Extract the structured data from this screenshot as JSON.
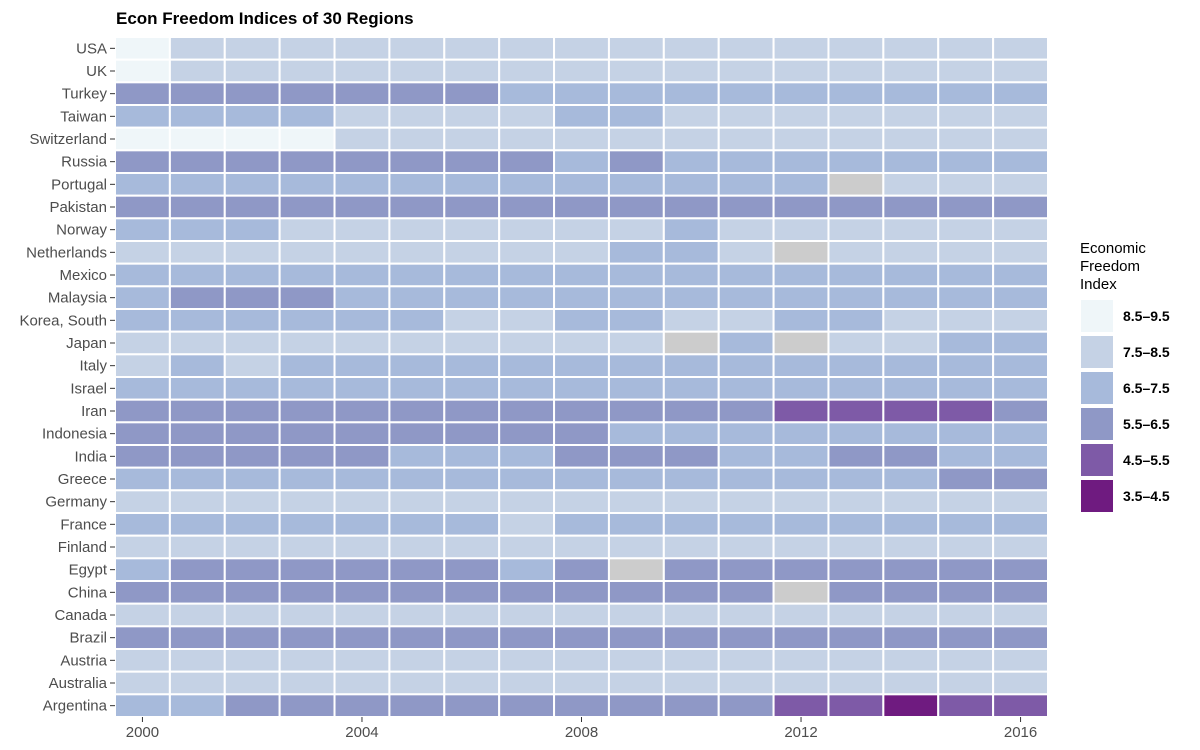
{
  "chart_data": {
    "type": "heatmap",
    "title": "Econ Freedom Indices of 30 Regions",
    "xlabel": "",
    "ylabel": "",
    "x_start": 2000,
    "x_end": 2016,
    "x_ticks": [
      2000,
      2004,
      2008,
      2012,
      2016
    ],
    "legend_title": [
      "Economic",
      "Freedom",
      "Index"
    ],
    "legend_position": "right",
    "na_color": "#cccccc",
    "bins": [
      {
        "label": "8.5–9.5",
        "color": "#eff6f9"
      },
      {
        "label": "7.5–8.5",
        "color": "#c5d2e5"
      },
      {
        "label": "6.5–7.5",
        "color": "#a7badb"
      },
      {
        "label": "5.5–6.5",
        "color": "#8f98c6"
      },
      {
        "label": "4.5–5.5",
        "color": "#7e5aa7"
      },
      {
        "label": "3.5–4.5",
        "color": "#6f1b80"
      }
    ],
    "bin_midpoints": [
      9.0,
      8.0,
      7.0,
      6.0,
      5.0,
      4.0
    ],
    "regions": [
      "USA",
      "UK",
      "Turkey",
      "Taiwan",
      "Switzerland",
      "Russia",
      "Portugal",
      "Pakistan",
      "Norway",
      "Netherlands",
      "Mexico",
      "Malaysia",
      "Korea, South",
      "Japan",
      "Italy",
      "Israel",
      "Iran",
      "Indonesia",
      "India",
      "Greece",
      "Germany",
      "France",
      "Finland",
      "Egypt",
      "China",
      "Canada",
      "Brazil",
      "Austria",
      "Australia",
      "Argentina"
    ],
    "values": [
      [
        9,
        8,
        8,
        8,
        8,
        8,
        8,
        8,
        8,
        8,
        8,
        8,
        8,
        8,
        8,
        8,
        8
      ],
      [
        9,
        8,
        8,
        8,
        8,
        8,
        8,
        8,
        8,
        8,
        8,
        8,
        8,
        8,
        8,
        8,
        8
      ],
      [
        6,
        6,
        6,
        6,
        6,
        6,
        6,
        7,
        7,
        7,
        7,
        7,
        7,
        7,
        7,
        7,
        7
      ],
      [
        7,
        7,
        7,
        7,
        8,
        8,
        8,
        8,
        7,
        7,
        8,
        8,
        8,
        8,
        8,
        8,
        8
      ],
      [
        9,
        9,
        9,
        9,
        8,
        8,
        8,
        8,
        8,
        8,
        8,
        8,
        8,
        8,
        8,
        8,
        8
      ],
      [
        6,
        6,
        6,
        6,
        6,
        6,
        6,
        6,
        7,
        6,
        7,
        7,
        7,
        7,
        7,
        7,
        7
      ],
      [
        7,
        7,
        7,
        7,
        7,
        7,
        7,
        7,
        7,
        7,
        7,
        7,
        7,
        null,
        8,
        8,
        8
      ],
      [
        6,
        6,
        6,
        6,
        6,
        6,
        6,
        6,
        6,
        6,
        6,
        6,
        6,
        6,
        6,
        6,
        6
      ],
      [
        7,
        7,
        7,
        8,
        8,
        8,
        8,
        8,
        8,
        8,
        7,
        8,
        8,
        8,
        8,
        8,
        8
      ],
      [
        8,
        8,
        8,
        8,
        8,
        8,
        8,
        8,
        8,
        7,
        7,
        8,
        null,
        8,
        8,
        8,
        8
      ],
      [
        7,
        7,
        7,
        7,
        7,
        7,
        7,
        7,
        7,
        7,
        7,
        7,
        7,
        7,
        7,
        7,
        7
      ],
      [
        7,
        6,
        6,
        6,
        7,
        7,
        7,
        7,
        7,
        7,
        7,
        7,
        7,
        7,
        7,
        7,
        7
      ],
      [
        7,
        7,
        7,
        7,
        7,
        7,
        8,
        8,
        7,
        7,
        8,
        8,
        7,
        7,
        8,
        8,
        8
      ],
      [
        8,
        8,
        8,
        8,
        8,
        8,
        8,
        8,
        8,
        8,
        null,
        7,
        null,
        8,
        8,
        7,
        7
      ],
      [
        8,
        7,
        8,
        7,
        7,
        7,
        7,
        7,
        7,
        7,
        7,
        7,
        7,
        7,
        7,
        7,
        7
      ],
      [
        7,
        7,
        7,
        7,
        7,
        7,
        7,
        7,
        7,
        7,
        7,
        7,
        7,
        7,
        7,
        7,
        7
      ],
      [
        6,
        6,
        6,
        6,
        6,
        6,
        6,
        6,
        6,
        6,
        6,
        6,
        5,
        5,
        5,
        5,
        6
      ],
      [
        6,
        6,
        6,
        6,
        6,
        6,
        6,
        6,
        6,
        7,
        7,
        7,
        7,
        7,
        7,
        7,
        7
      ],
      [
        6,
        6,
        6,
        6,
        6,
        7,
        7,
        7,
        6,
        6,
        6,
        7,
        7,
        6,
        6,
        7,
        7
      ],
      [
        7,
        7,
        7,
        7,
        7,
        7,
        7,
        7,
        7,
        7,
        7,
        7,
        7,
        7,
        7,
        6,
        6
      ],
      [
        8,
        8,
        8,
        8,
        8,
        8,
        8,
        8,
        8,
        8,
        8,
        8,
        8,
        8,
        8,
        8,
        8
      ],
      [
        7,
        7,
        7,
        7,
        7,
        7,
        7,
        8,
        7,
        7,
        7,
        7,
        7,
        7,
        7,
        7,
        7
      ],
      [
        8,
        8,
        8,
        8,
        8,
        8,
        8,
        8,
        8,
        8,
        8,
        8,
        8,
        8,
        8,
        8,
        8
      ],
      [
        7,
        6,
        6,
        6,
        6,
        6,
        6,
        7,
        6,
        null,
        6,
        6,
        6,
        6,
        6,
        6,
        6
      ],
      [
        6,
        6,
        6,
        6,
        6,
        6,
        6,
        6,
        6,
        6,
        6,
        6,
        null,
        6,
        6,
        6,
        6
      ],
      [
        8,
        8,
        8,
        8,
        8,
        8,
        8,
        8,
        8,
        8,
        8,
        8,
        8,
        8,
        8,
        8,
        8
      ],
      [
        6,
        6,
        6,
        6,
        6,
        6,
        6,
        6,
        6,
        6,
        6,
        6,
        6,
        6,
        6,
        6,
        6
      ],
      [
        8,
        8,
        8,
        8,
        8,
        8,
        8,
        8,
        8,
        8,
        8,
        8,
        8,
        8,
        8,
        8,
        8
      ],
      [
        8,
        8,
        8,
        8,
        8,
        8,
        8,
        8,
        8,
        8,
        8,
        8,
        8,
        8,
        8,
        8,
        8
      ],
      [
        7,
        7,
        6,
        6,
        6,
        6,
        6,
        6,
        6,
        6,
        6,
        6,
        5,
        5,
        4,
        5,
        5
      ]
    ]
  }
}
